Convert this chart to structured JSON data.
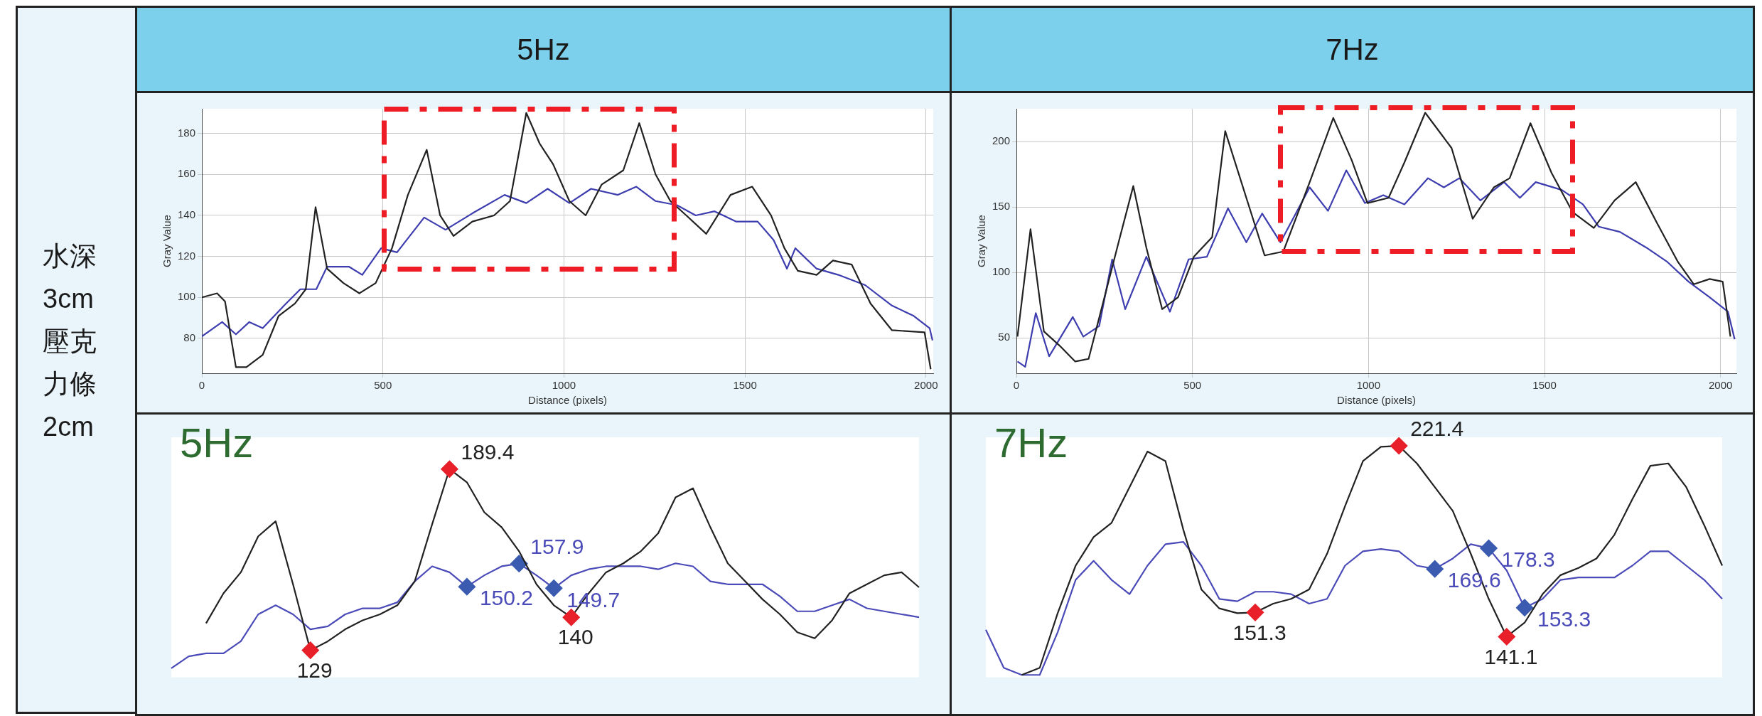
{
  "chart_data": [
    {
      "type": "line",
      "title": "5Hz",
      "xlabel": "Distance (pixels)",
      "ylabel": "Gray Value",
      "annotations": [
        "水深3cm壓克力條2cm"
      ],
      "xlim": [
        0,
        2020
      ],
      "ylim": [
        63,
        192
      ],
      "xticks": [
        0,
        500,
        1000,
        1500,
        2000
      ],
      "yticks": [
        80,
        100,
        120,
        140,
        160,
        180
      ],
      "grid": true,
      "series": [
        {
          "color": "#222222",
          "x": [
            0,
            42,
            64,
            94,
            123,
            168,
            212,
            257,
            287,
            314,
            346,
            391,
            435,
            480,
            525,
            569,
            621,
            658,
            695,
            747,
            807,
            851,
            896,
            933,
            970,
            1015,
            1060,
            1104,
            1164,
            1208,
            1253,
            1294,
            1338,
            1393,
            1460,
            1520,
            1572,
            1609,
            1646,
            1698,
            1743,
            1795,
            1847,
            1906,
            1996,
            2013
          ],
          "values": [
            100,
            102,
            98,
            66,
            66,
            72,
            91,
            97,
            104,
            144,
            114,
            107,
            102,
            107,
            124,
            150,
            172,
            140,
            130,
            137,
            140,
            147,
            190,
            175,
            165,
            147,
            140,
            155,
            162,
            185,
            160,
            147,
            140,
            131,
            150,
            154,
            140,
            124,
            113,
            111,
            118,
            116,
            97,
            84,
            83,
            65
          ]
        },
        {
          "color": "#3d3db0",
          "x": [
            0,
            56,
            94,
            131,
            168,
            227,
            272,
            316,
            346,
            406,
            443,
            495,
            539,
            614,
            673,
            747,
            836,
            896,
            955,
            1015,
            1075,
            1149,
            1200,
            1253,
            1312,
            1364,
            1416,
            1475,
            1535,
            1579,
            1616,
            1639,
            1698,
            1758,
            1832,
            1906,
            1966,
            2010,
            2018
          ],
          "values": [
            81,
            88,
            82,
            88,
            85,
            96,
            104,
            104,
            115,
            115,
            111,
            124,
            122,
            139,
            133,
            141,
            150,
            146,
            153,
            146,
            153,
            150,
            154,
            147,
            145,
            140,
            142,
            137,
            137,
            128,
            114,
            124,
            114,
            111,
            106,
            96,
            91,
            85,
            79
          ]
        }
      ]
    },
    {
      "type": "line",
      "title": "7Hz",
      "xlabel": "Distance (pixels)",
      "ylabel": "Gray Value",
      "xlim": [
        0,
        2045
      ],
      "ylim": [
        23,
        225
      ],
      "xticks": [
        0,
        500,
        1000,
        1500,
        2000
      ],
      "yticks": [
        50,
        100,
        150,
        200
      ],
      "grid": true,
      "series": [
        {
          "color": "#222222",
          "x": [
            3,
            40,
            78,
            123,
            167,
            205,
            250,
            294,
            332,
            369,
            414,
            459,
            504,
            556,
            593,
            653,
            705,
            758,
            833,
            900,
            952,
            997,
            1057,
            1102,
            1161,
            1236,
            1296,
            1356,
            1401,
            1460,
            1520,
            1580,
            1640,
            1699,
            1759,
            1819,
            1879,
            1924,
            1969,
            2006,
            2028
          ],
          "values": [
            51,
            133,
            55,
            44,
            32,
            34,
            81,
            127,
            166,
            119,
            72,
            81,
            112,
            127,
            208,
            157,
            113,
            116,
            169,
            218,
            186,
            153,
            157,
            184,
            222,
            195,
            141,
            165,
            172,
            214,
            176,
            146,
            134,
            155,
            169,
            138,
            108,
            91,
            95,
            93,
            51
          ]
        },
        {
          "color": "#3d3db0",
          "x": [
            3,
            25,
            55,
            93,
            160,
            190,
            235,
            272,
            309,
            369,
            436,
            489,
            541,
            601,
            653,
            698,
            750,
            833,
            885,
            937,
            990,
            1042,
            1102,
            1169,
            1214,
            1258,
            1318,
            1385,
            1430,
            1475,
            1549,
            1609,
            1654,
            1714,
            1789,
            1849,
            1909,
            1969,
            2021,
            2040
          ],
          "values": [
            32,
            28,
            69,
            36,
            66,
            51,
            59,
            110,
            72,
            112,
            70,
            110,
            112,
            149,
            123,
            145,
            123,
            165,
            147,
            178,
            153,
            159,
            152,
            172,
            165,
            172,
            155,
            169,
            157,
            169,
            163,
            152,
            135,
            131,
            119,
            108,
            93,
            81,
            70,
            49
          ]
        }
      ]
    },
    {
      "type": "line",
      "title": "5Hz",
      "ylim": [
        120,
        200
      ],
      "categories": [
        null,
        null,
        null,
        null,
        null,
        null,
        null,
        null,
        null,
        null,
        null,
        null,
        null,
        null,
        null,
        null,
        null,
        null,
        null,
        null,
        null,
        null,
        null,
        null,
        null,
        null,
        null,
        null,
        null,
        null,
        null,
        null,
        null,
        null,
        null,
        null,
        null,
        null,
        null,
        null,
        null,
        null,
        null,
        null
      ],
      "series": [
        {
          "color": "#222222",
          "values": [
            null,
            null,
            138,
            148,
            155,
            167,
            172,
            151,
            129,
            132,
            136,
            139,
            141,
            144,
            152,
            171,
            189.4,
            185,
            175,
            170,
            162,
            151,
            144,
            140,
            148,
            155,
            158,
            162,
            168,
            180,
            183,
            170,
            158,
            152,
            146,
            141,
            135,
            133,
            139,
            148,
            151,
            154,
            155,
            150
          ],
          "colors": [
            null,
            null,
            null,
            null,
            null,
            null,
            null,
            null,
            "#e8202a",
            null,
            null,
            null,
            null,
            null,
            null,
            null,
            "#e8202a",
            null,
            null,
            null,
            null,
            null,
            null,
            "#e8202a",
            null,
            null,
            null,
            null,
            null,
            null,
            null,
            null,
            null,
            null,
            null,
            null,
            null,
            null,
            null,
            null,
            null,
            null,
            null,
            null
          ],
          "value_labels": [
            null,
            null,
            null,
            null,
            null,
            null,
            null,
            null,
            "129",
            null,
            null,
            null,
            null,
            null,
            null,
            null,
            "189.4",
            null,
            null,
            null,
            null,
            null,
            null,
            "140",
            null,
            null,
            null,
            null,
            null,
            null,
            null,
            null,
            null,
            null,
            null,
            null,
            null,
            null,
            null,
            null,
            null,
            null,
            null,
            null
          ]
        },
        {
          "color": "#4a4ab8",
          "values": [
            123,
            127,
            128,
            128,
            132,
            141,
            144,
            141,
            136,
            137,
            141,
            143,
            143,
            145,
            152,
            157,
            155,
            150.2,
            154,
            157,
            157.9,
            154,
            149.7,
            154,
            156,
            157,
            157,
            157,
            156,
            158,
            157,
            152,
            151,
            151,
            151,
            147,
            142,
            142,
            144,
            146,
            143,
            142,
            141,
            140
          ],
          "colors": [
            null,
            null,
            null,
            null,
            null,
            null,
            null,
            null,
            null,
            null,
            null,
            null,
            null,
            null,
            null,
            null,
            null,
            "#3b5bb0",
            null,
            null,
            "#3b5bb0",
            null,
            "#3b5bb0",
            null,
            null,
            null,
            null,
            null,
            null,
            null,
            null,
            null,
            null,
            null,
            null,
            null,
            null,
            null,
            null,
            null,
            null,
            null,
            null,
            null
          ],
          "value_labels": [
            null,
            null,
            null,
            null,
            null,
            null,
            null,
            null,
            null,
            null,
            null,
            null,
            null,
            null,
            null,
            null,
            null,
            "150.2",
            null,
            null,
            "157.9",
            null,
            "149.7",
            null,
            null,
            null,
            null,
            null,
            null,
            null,
            null,
            null,
            null,
            null,
            null,
            null,
            null,
            null,
            null,
            null,
            null,
            null,
            null,
            null
          ]
        }
      ]
    },
    {
      "type": "line",
      "title": "7Hz",
      "ylim": [
        124,
        225
      ],
      "categories": [
        null,
        null,
        null,
        null,
        null,
        null,
        null,
        null,
        null,
        null,
        null,
        null,
        null,
        null,
        null,
        null,
        null,
        null,
        null,
        null,
        null,
        null,
        null,
        null,
        null,
        null,
        null,
        null,
        null,
        null,
        null,
        null,
        null,
        null,
        null,
        null,
        null,
        null,
        null,
        null,
        null,
        null
      ],
      "series": [
        {
          "color": "#222222",
          "values": [
            null,
            null,
            125,
            128,
            151,
            171,
            183,
            189,
            204,
            219,
            215,
            186,
            161,
            153,
            151,
            151.3,
            155,
            157,
            161,
            176,
            196,
            215,
            221,
            221.4,
            214,
            204,
            194,
            176,
            157,
            141.1,
            147,
            159,
            167,
            170,
            174,
            184,
            199,
            213,
            214,
            204,
            188,
            171
          ],
          "colors": [
            null,
            null,
            null,
            null,
            null,
            null,
            null,
            null,
            null,
            null,
            null,
            null,
            null,
            null,
            null,
            "#e8202a",
            null,
            null,
            null,
            null,
            null,
            null,
            null,
            "#e8202a",
            null,
            null,
            null,
            null,
            null,
            "#e8202a",
            null,
            null,
            null,
            null,
            null,
            null,
            null,
            null,
            null,
            null,
            null,
            null
          ],
          "value_labels": [
            null,
            null,
            null,
            null,
            null,
            null,
            null,
            null,
            null,
            null,
            null,
            null,
            null,
            null,
            null,
            "151.3",
            null,
            null,
            null,
            null,
            null,
            null,
            null,
            "221.4",
            null,
            null,
            null,
            null,
            null,
            "141.1",
            null,
            null,
            null,
            null,
            null,
            null,
            null,
            null,
            null,
            null,
            null,
            null
          ]
        },
        {
          "color": "#4a4ab8",
          "values": [
            144,
            128,
            125,
            125,
            143,
            165,
            173,
            165,
            159,
            171,
            180,
            181,
            171,
            157,
            156,
            160,
            160,
            159,
            155,
            157,
            171,
            177,
            178,
            177,
            171,
            169.6,
            174,
            180,
            178.3,
            169,
            153.3,
            157,
            165,
            166,
            166,
            166,
            171,
            177,
            177,
            171,
            165,
            157
          ],
          "colors": [
            null,
            null,
            null,
            null,
            null,
            null,
            null,
            null,
            null,
            null,
            null,
            null,
            null,
            null,
            null,
            null,
            null,
            null,
            null,
            null,
            null,
            null,
            null,
            null,
            null,
            "#3b5bb0",
            null,
            null,
            "#3b5bb0",
            null,
            "#3b5bb0",
            null,
            null,
            null,
            null,
            null,
            null,
            null,
            null,
            null,
            null,
            null
          ],
          "value_labels": [
            null,
            null,
            null,
            null,
            null,
            null,
            null,
            null,
            null,
            null,
            null,
            null,
            null,
            null,
            null,
            null,
            null,
            null,
            null,
            null,
            null,
            null,
            null,
            null,
            null,
            "169.6",
            null,
            null,
            "178.3",
            null,
            "153.3",
            null,
            null,
            null,
            null,
            null,
            null,
            null,
            null,
            null,
            null,
            null
          ]
        }
      ]
    }
  ]
}
